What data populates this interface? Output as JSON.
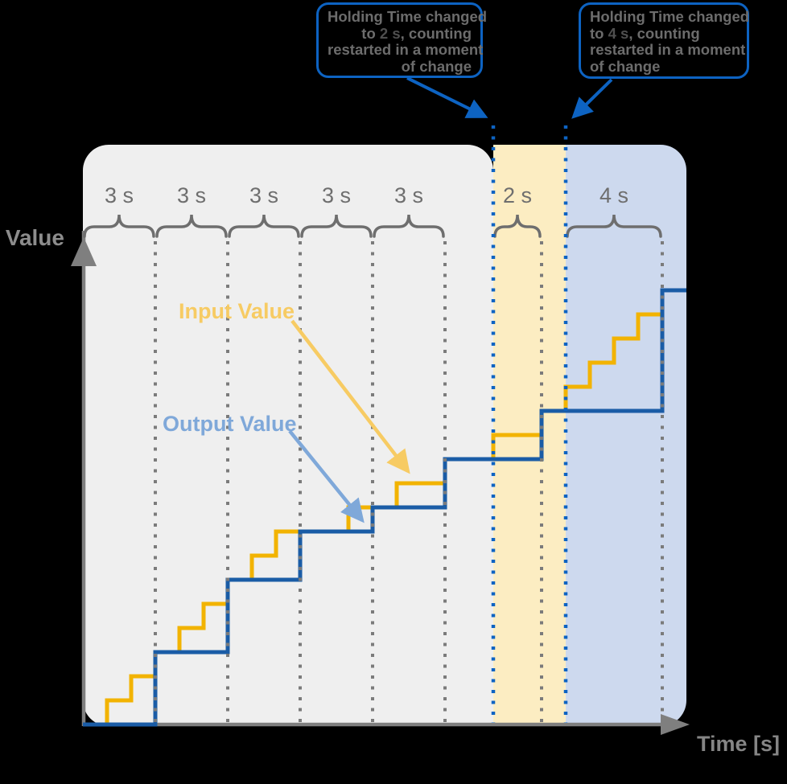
{
  "callouts": [
    {
      "id": "holding-2s",
      "align": "right",
      "lines": [
        [
          "Holding Time changed"
        ],
        [
          "to ",
          "2 s",
          ", counting"
        ],
        [
          "restarted in a moment"
        ],
        [
          "of change"
        ]
      ]
    },
    {
      "id": "holding-4s",
      "align": "left",
      "lines": [
        [
          "Holding Time changed"
        ],
        [
          "to ",
          "4 s",
          ", counting"
        ],
        [
          "restarted in a moment"
        ],
        [
          "of change"
        ]
      ]
    }
  ],
  "axis": {
    "y_label": "Value",
    "x_label": "Time [s]"
  },
  "series_labels": {
    "input": "Input Value",
    "output": "Output Value"
  },
  "braces": [
    {
      "label": "3 s",
      "t1": 0,
      "t2": 3
    },
    {
      "label": "3 s",
      "t1": 3,
      "t2": 6
    },
    {
      "label": "3 s",
      "t1": 6,
      "t2": 9
    },
    {
      "label": "3 s",
      "t1": 9,
      "t2": 12
    },
    {
      "label": "3 s",
      "t1": 12,
      "t2": 15
    },
    {
      "label": "2 s",
      "t1": 17,
      "t2": 19
    },
    {
      "label": "4 s",
      "t1": 20,
      "t2": 24
    }
  ],
  "regions": [
    {
      "name": "holding-3s-region",
      "t1": 0,
      "t2": 17,
      "color": "#efefef"
    },
    {
      "name": "holding-2s-region",
      "t1": 17,
      "t2": 20,
      "color": "#fcedc2"
    },
    {
      "name": "holding-4s-region",
      "t1": 20,
      "t2": 25,
      "color": "#cdd9ee"
    }
  ],
  "timeline": {
    "total_span_s": 25,
    "sample_times_s": [
      3,
      6,
      9,
      12,
      15,
      19,
      24
    ],
    "holding_time_change_times_s": [
      17,
      20
    ]
  },
  "chart_data": {
    "type": "line",
    "subtype": "step",
    "title": "",
    "xlabel": "Time [s]",
    "ylabel": "Value",
    "x_unit": "seconds",
    "x_range": [
      0,
      25
    ],
    "y_range": [
      0,
      20
    ],
    "grid": false,
    "series": [
      {
        "name": "Input Value",
        "color": "#f2b301",
        "label_color": "#f7cb63",
        "start_value": 0,
        "step_changes": [
          [
            1,
            1
          ],
          [
            2,
            2
          ],
          [
            3,
            3
          ],
          [
            4,
            4
          ],
          [
            5,
            5
          ],
          [
            6,
            6
          ],
          [
            7,
            7
          ],
          [
            8,
            8
          ],
          [
            11,
            9
          ],
          [
            13,
            10
          ],
          [
            15,
            11
          ],
          [
            17,
            12
          ],
          [
            19,
            13
          ],
          [
            20,
            14
          ],
          [
            21,
            15
          ],
          [
            22,
            16
          ],
          [
            23,
            17
          ],
          [
            24,
            18
          ]
        ]
      },
      {
        "name": "Output Value",
        "color": "#1a5ca6",
        "label_color": "#7fa8d9",
        "start_value": 0,
        "step_changes": [
          [
            3,
            3
          ],
          [
            6,
            6
          ],
          [
            9,
            8
          ],
          [
            12,
            9
          ],
          [
            15,
            11
          ],
          [
            19,
            13
          ],
          [
            24,
            18
          ]
        ]
      }
    ],
    "holding_time_intervals": [
      {
        "label": "3 s",
        "spans_s": [
          [
            0,
            3
          ],
          [
            3,
            6
          ],
          [
            6,
            9
          ],
          [
            9,
            12
          ],
          [
            12,
            15
          ]
        ]
      },
      {
        "label": "2 s",
        "spans_s": [
          [
            17,
            19
          ]
        ]
      },
      {
        "label": "4 s",
        "spans_s": [
          [
            20,
            24
          ]
        ]
      }
    ],
    "annotations": [
      "Holding Time changed to 2 s, counting restarted in a moment of change",
      "Holding Time changed to 4 s, counting restarted in a moment of change"
    ]
  },
  "colors": {
    "background": "#000000",
    "accent_blue": "#0d63c2",
    "output_line": "#1a5ca6",
    "output_light": "#7fa8d9",
    "input_line": "#f2b301",
    "input_light": "#f7cb63",
    "plot_gray": "#efefef",
    "band_yellow": "#fcedc2",
    "band_blue": "#cdd9ee",
    "axis_gray": "#7f7f7f",
    "dot_gray": "#7b7b7b",
    "brace_gray": "#6e6e6e",
    "text_gray": "#6c6c6c"
  }
}
